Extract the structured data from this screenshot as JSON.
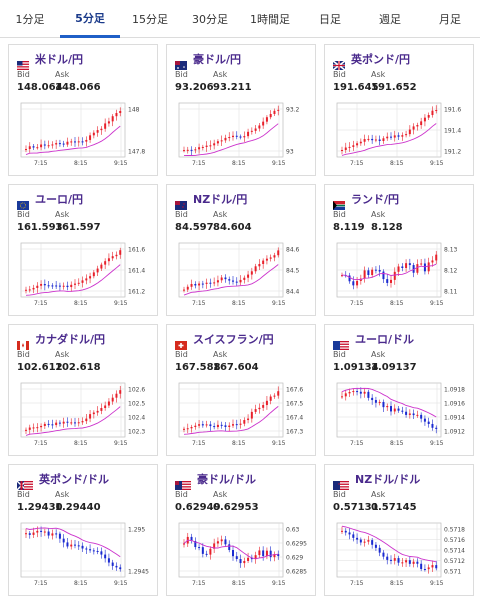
{
  "tabs": [
    {
      "label": "1分足",
      "active": false
    },
    {
      "label": "5分足",
      "active": true
    },
    {
      "label": "15分足",
      "active": false
    },
    {
      "label": "30分足",
      "active": false
    },
    {
      "label": "1時間足",
      "active": false
    },
    {
      "label": "日足",
      "active": false
    },
    {
      "label": "週足",
      "active": false
    },
    {
      "label": "月足",
      "active": false
    }
  ],
  "bid_label": "Bid",
  "ask_label": "Ask",
  "colors": {
    "up": "#e8202a",
    "down": "#1a2ad0",
    "ma": "#cc33cc",
    "grid": "#dddddd",
    "tab_active": "#1f5fc7"
  },
  "cards": [
    {
      "pair": "米ドル/円",
      "flag": "us-flag-icon",
      "bid": "148.064",
      "ask": "148.066",
      "y_ticks": [
        "148",
        "147.8"
      ],
      "x_ticks": [
        "7:15",
        "8:15",
        "9:15"
      ],
      "trend": "up",
      "ma": "below",
      "volatility": 0.5
    },
    {
      "pair": "豪ドル/円",
      "flag": "au-flag-icon",
      "bid": "93.206",
      "ask": "93.211",
      "y_ticks": [
        "93.2",
        "93"
      ],
      "x_ticks": [
        "7:15",
        "8:15",
        "9:15"
      ],
      "trend": "up",
      "ma": "below",
      "volatility": 0.6
    },
    {
      "pair": "英ポンド/円",
      "flag": "gb-flag-icon",
      "bid": "191.645",
      "ask": "191.652",
      "y_ticks": [
        "191.6",
        "191.4",
        "191.2"
      ],
      "x_ticks": [
        "7:15",
        "8:15",
        "9:15"
      ],
      "trend": "up",
      "ma": "below",
      "volatility": 0.6
    },
    {
      "pair": "ユーロ/円",
      "flag": "eu-flag-icon",
      "bid": "161.593",
      "ask": "161.597",
      "y_ticks": [
        "161.6",
        "161.4",
        "161.2"
      ],
      "x_ticks": [
        "7:15",
        "8:15",
        "9:15"
      ],
      "trend": "up",
      "ma": "below",
      "volatility": 0.5
    },
    {
      "pair": "NZドル/円",
      "flag": "nz-flag-icon",
      "bid": "84.597",
      "ask": "84.604",
      "y_ticks": [
        "84.6",
        "84.5",
        "84.4"
      ],
      "x_ticks": [
        "7:15",
        "8:15",
        "9:15"
      ],
      "trend": "up",
      "ma": "below",
      "volatility": 0.6
    },
    {
      "pair": "ランド/円",
      "flag": "za-flag-icon",
      "bid": "8.119",
      "ask": "8.128",
      "y_ticks": [
        "8.13",
        "8.12",
        "8.11"
      ],
      "x_ticks": [
        "7:15",
        "8:15",
        "9:15"
      ],
      "trend": "flat-up",
      "ma": "middle",
      "volatility": 1.0
    },
    {
      "pair": "カナダドル/円",
      "flag": "ca-flag-icon",
      "bid": "102.612",
      "ask": "102.618",
      "y_ticks": [
        "102.6",
        "102.5",
        "102.4",
        "102.3"
      ],
      "x_ticks": [
        "7:15",
        "8:15",
        "9:15"
      ],
      "trend": "up",
      "ma": "below",
      "volatility": 0.5
    },
    {
      "pair": "スイスフラン/円",
      "flag": "ch-flag-icon",
      "bid": "167.588",
      "ask": "167.604",
      "y_ticks": [
        "167.6",
        "167.5",
        "167.4",
        "167.3"
      ],
      "x_ticks": [
        "7:15",
        "8:15",
        "9:15"
      ],
      "trend": "up",
      "ma": "below",
      "volatility": 0.6
    },
    {
      "pair": "ユーロ/ドル",
      "flag": "eu-us-flag-icon",
      "bid": "1.09134",
      "ask": "1.09137",
      "y_ticks": [
        "1.0918",
        "1.0916",
        "1.0914",
        "1.0912"
      ],
      "x_ticks": [
        "7:15",
        "8:15",
        "9:15"
      ],
      "trend": "down",
      "ma": "above",
      "volatility": 1.0
    },
    {
      "pair": "英ポンド/ドル",
      "flag": "gb-us-flag-icon",
      "bid": "1.29430",
      "ask": "1.29440",
      "y_ticks": [
        "1.295",
        "1.2945"
      ],
      "x_ticks": [
        "7:15",
        "8:15",
        "9:15"
      ],
      "trend": "down",
      "ma": "above",
      "volatility": 0.8
    },
    {
      "pair": "豪ドル/ドル",
      "flag": "au-us-flag-icon",
      "bid": "0.62949",
      "ask": "0.62953",
      "y_ticks": [
        "0.63",
        "0.6295",
        "0.629",
        "0.6285"
      ],
      "x_ticks": [
        "7:15",
        "8:15",
        "9:15"
      ],
      "trend": "flat",
      "ma": "middle",
      "volatility": 0.6
    },
    {
      "pair": "NZドル/ドル",
      "flag": "nz-us-flag-icon",
      "bid": "0.57131",
      "ask": "0.57145",
      "y_ticks": [
        "0.5718",
        "0.5716",
        "0.5714",
        "0.5712",
        "0.571"
      ],
      "x_ticks": [
        "7:15",
        "8:15",
        "9:15"
      ],
      "trend": "down",
      "ma": "above",
      "volatility": 0.9
    }
  ]
}
